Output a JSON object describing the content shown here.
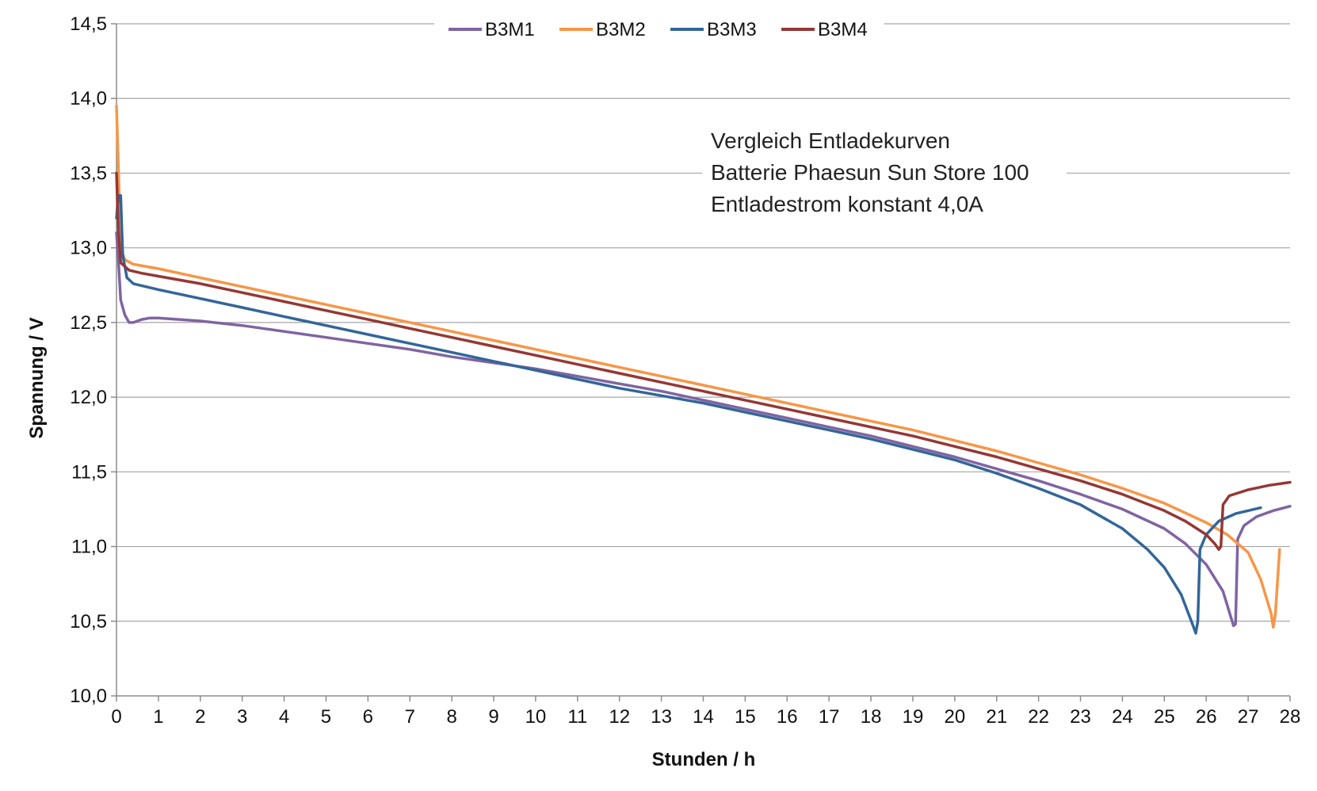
{
  "chart_data": {
    "type": "line",
    "xlabel": "Stunden / h",
    "ylabel": "Spannung / V",
    "xlim": [
      0,
      28
    ],
    "ylim": [
      10.0,
      14.5
    ],
    "x_ticks": [
      "0",
      "1",
      "2",
      "3",
      "4",
      "5",
      "6",
      "7",
      "8",
      "9",
      "10",
      "11",
      "12",
      "13",
      "14",
      "15",
      "16",
      "17",
      "18",
      "19",
      "20",
      "21",
      "22",
      "23",
      "24",
      "25",
      "26",
      "27",
      "28"
    ],
    "y_ticks": [
      "10,0",
      "10,5",
      "11,0",
      "11,5",
      "12,0",
      "12,5",
      "13,0",
      "13,5",
      "14,0",
      "14,5"
    ],
    "y_tick_values": [
      10.0,
      10.5,
      11.0,
      11.5,
      12.0,
      12.5,
      13.0,
      13.5,
      14.0,
      14.5
    ],
    "grid": "horizontal",
    "legend_position": "top",
    "annotation": [
      "Vergleich Entladekurven",
      "Batterie Phaesun Sun Store 100",
      "Entladestrom konstant 4,0A"
    ],
    "series": [
      {
        "name": "B3M1",
        "color": "#8064a2",
        "points": [
          [
            0,
            13.1
          ],
          [
            0.05,
            12.9
          ],
          [
            0.1,
            12.65
          ],
          [
            0.2,
            12.55
          ],
          [
            0.3,
            12.5
          ],
          [
            0.4,
            12.5
          ],
          [
            0.6,
            12.52
          ],
          [
            0.8,
            12.53
          ],
          [
            1,
            12.53
          ],
          [
            2,
            12.51
          ],
          [
            3,
            12.48
          ],
          [
            4,
            12.44
          ],
          [
            5,
            12.4
          ],
          [
            6,
            12.36
          ],
          [
            7,
            12.32
          ],
          [
            8,
            12.27
          ],
          [
            9,
            12.23
          ],
          [
            10,
            12.19
          ],
          [
            11,
            12.14
          ],
          [
            12,
            12.09
          ],
          [
            13,
            12.04
          ],
          [
            14,
            11.98
          ],
          [
            15,
            11.92
          ],
          [
            16,
            11.86
          ],
          [
            17,
            11.8
          ],
          [
            18,
            11.74
          ],
          [
            19,
            11.67
          ],
          [
            20,
            11.6
          ],
          [
            21,
            11.52
          ],
          [
            22,
            11.44
          ],
          [
            23,
            11.35
          ],
          [
            24,
            11.25
          ],
          [
            25,
            11.12
          ],
          [
            25.5,
            11.02
          ],
          [
            26,
            10.88
          ],
          [
            26.4,
            10.7
          ],
          [
            26.65,
            10.47
          ],
          [
            26.7,
            10.48
          ],
          [
            26.75,
            11.05
          ],
          [
            26.9,
            11.14
          ],
          [
            27.2,
            11.2
          ],
          [
            27.6,
            11.24
          ],
          [
            28,
            11.27
          ]
        ]
      },
      {
        "name": "B3M2",
        "color": "#f79646",
        "points": [
          [
            0,
            13.95
          ],
          [
            0.05,
            13.5
          ],
          [
            0.1,
            13.0
          ],
          [
            0.2,
            12.92
          ],
          [
            0.4,
            12.89
          ],
          [
            1,
            12.86
          ],
          [
            2,
            12.8
          ],
          [
            3,
            12.74
          ],
          [
            4,
            12.68
          ],
          [
            5,
            12.62
          ],
          [
            6,
            12.56
          ],
          [
            7,
            12.5
          ],
          [
            8,
            12.44
          ],
          [
            9,
            12.38
          ],
          [
            10,
            12.32
          ],
          [
            11,
            12.26
          ],
          [
            12,
            12.2
          ],
          [
            13,
            12.14
          ],
          [
            14,
            12.08
          ],
          [
            15,
            12.02
          ],
          [
            16,
            11.96
          ],
          [
            17,
            11.9
          ],
          [
            18,
            11.84
          ],
          [
            19,
            11.78
          ],
          [
            20,
            11.71
          ],
          [
            21,
            11.64
          ],
          [
            22,
            11.56
          ],
          [
            23,
            11.48
          ],
          [
            24,
            11.39
          ],
          [
            25,
            11.29
          ],
          [
            26,
            11.16
          ],
          [
            26.5,
            11.08
          ],
          [
            27,
            10.96
          ],
          [
            27.3,
            10.78
          ],
          [
            27.55,
            10.55
          ],
          [
            27.6,
            10.46
          ],
          [
            27.65,
            10.55
          ],
          [
            27.75,
            10.98
          ]
        ]
      },
      {
        "name": "B3M3",
        "color": "#336699",
        "points": [
          [
            0,
            13.2
          ],
          [
            0.05,
            13.35
          ],
          [
            0.1,
            13.35
          ],
          [
            0.15,
            12.95
          ],
          [
            0.25,
            12.8
          ],
          [
            0.4,
            12.76
          ],
          [
            1,
            12.72
          ],
          [
            2,
            12.66
          ],
          [
            3,
            12.6
          ],
          [
            4,
            12.54
          ],
          [
            5,
            12.48
          ],
          [
            6,
            12.42
          ],
          [
            7,
            12.36
          ],
          [
            8,
            12.3
          ],
          [
            9,
            12.24
          ],
          [
            10,
            12.18
          ],
          [
            11,
            12.12
          ],
          [
            12,
            12.06
          ],
          [
            13,
            12.01
          ],
          [
            14,
            11.96
          ],
          [
            15,
            11.9
          ],
          [
            16,
            11.84
          ],
          [
            17,
            11.78
          ],
          [
            18,
            11.72
          ],
          [
            19,
            11.65
          ],
          [
            20,
            11.58
          ],
          [
            21,
            11.49
          ],
          [
            22,
            11.39
          ],
          [
            23,
            11.28
          ],
          [
            24,
            11.12
          ],
          [
            24.6,
            10.98
          ],
          [
            25,
            10.86
          ],
          [
            25.4,
            10.68
          ],
          [
            25.7,
            10.46
          ],
          [
            25.75,
            10.42
          ],
          [
            25.8,
            10.5
          ],
          [
            25.85,
            10.98
          ],
          [
            26,
            11.08
          ],
          [
            26.3,
            11.17
          ],
          [
            26.7,
            11.22
          ],
          [
            27.3,
            11.26
          ]
        ]
      },
      {
        "name": "B3M4",
        "color": "#953735",
        "points": [
          [
            0,
            13.5
          ],
          [
            0.05,
            13.1
          ],
          [
            0.1,
            12.9
          ],
          [
            0.3,
            12.85
          ],
          [
            0.6,
            12.83
          ],
          [
            1,
            12.81
          ],
          [
            2,
            12.76
          ],
          [
            3,
            12.7
          ],
          [
            4,
            12.64
          ],
          [
            5,
            12.58
          ],
          [
            6,
            12.52
          ],
          [
            7,
            12.46
          ],
          [
            8,
            12.4
          ],
          [
            9,
            12.34
          ],
          [
            10,
            12.28
          ],
          [
            11,
            12.22
          ],
          [
            12,
            12.16
          ],
          [
            13,
            12.1
          ],
          [
            14,
            12.04
          ],
          [
            15,
            11.98
          ],
          [
            16,
            11.92
          ],
          [
            17,
            11.86
          ],
          [
            18,
            11.8
          ],
          [
            19,
            11.74
          ],
          [
            20,
            11.67
          ],
          [
            21,
            11.6
          ],
          [
            22,
            11.52
          ],
          [
            23,
            11.44
          ],
          [
            24,
            11.35
          ],
          [
            25,
            11.24
          ],
          [
            25.5,
            11.17
          ],
          [
            26,
            11.08
          ],
          [
            26.2,
            11.02
          ],
          [
            26.3,
            10.98
          ],
          [
            26.35,
            11.0
          ],
          [
            26.4,
            11.28
          ],
          [
            26.55,
            11.34
          ],
          [
            27,
            11.38
          ],
          [
            27.5,
            11.41
          ],
          [
            28,
            11.43
          ]
        ]
      }
    ]
  }
}
